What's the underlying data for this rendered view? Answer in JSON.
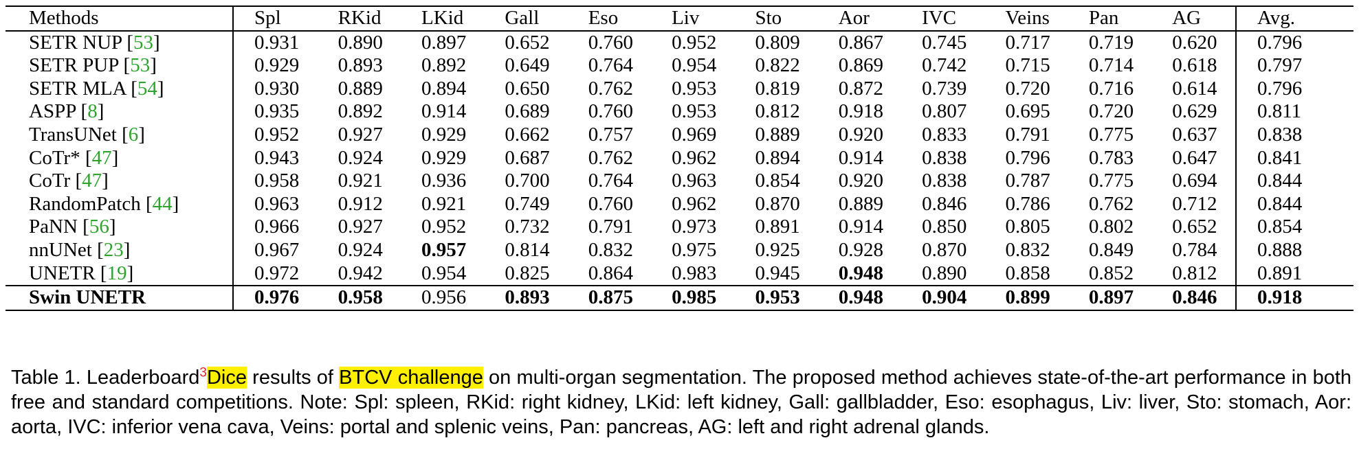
{
  "table": {
    "columns": [
      "Methods",
      "Spl",
      "RKid",
      "LKid",
      "Gall",
      "Eso",
      "Liv",
      "Sto",
      "Aor",
      "IVC",
      "Veins",
      "Pan",
      "AG",
      "Avg."
    ],
    "rows": [
      {
        "method": "SETR NUP ",
        "ref": "53",
        "values": [
          "0.931",
          "0.890",
          "0.897",
          "0.652",
          "0.760",
          "0.952",
          "0.809",
          "0.867",
          "0.745",
          "0.717",
          "0.719",
          "0.620",
          "0.796"
        ],
        "bold": []
      },
      {
        "method": "SETR PUP ",
        "ref": "53",
        "values": [
          "0.929",
          "0.893",
          "0.892",
          "0.649",
          "0.764",
          "0.954",
          "0.822",
          "0.869",
          "0.742",
          "0.715",
          "0.714",
          "0.618",
          "0.797"
        ],
        "bold": []
      },
      {
        "method": "SETR MLA ",
        "ref": "54",
        "values": [
          "0.930",
          "0.889",
          "0.894",
          "0.650",
          "0.762",
          "0.953",
          "0.819",
          "0.872",
          "0.739",
          "0.720",
          "0.716",
          "0.614",
          "0.796"
        ],
        "bold": []
      },
      {
        "method": "ASPP ",
        "ref": "8",
        "values": [
          "0.935",
          "0.892",
          "0.914",
          "0.689",
          "0.760",
          "0.953",
          "0.812",
          "0.918",
          "0.807",
          "0.695",
          "0.720",
          "0.629",
          "0.811"
        ],
        "bold": []
      },
      {
        "method": "TransUNet ",
        "ref": "6",
        "values": [
          "0.952",
          "0.927",
          "0.929",
          "0.662",
          "0.757",
          "0.969",
          "0.889",
          "0.920",
          "0.833",
          "0.791",
          "0.775",
          "0.637",
          "0.838"
        ],
        "bold": []
      },
      {
        "method": "CoTr* ",
        "ref": "47",
        "values": [
          "0.943",
          "0.924",
          "0.929",
          "0.687",
          "0.762",
          "0.962",
          "0.894",
          "0.914",
          "0.838",
          "0.796",
          "0.783",
          "0.647",
          "0.841"
        ],
        "bold": []
      },
      {
        "method": "CoTr ",
        "ref": "47",
        "values": [
          "0.958",
          "0.921",
          "0.936",
          "0.700",
          "0.764",
          "0.963",
          "0.854",
          "0.920",
          "0.838",
          "0.787",
          "0.775",
          "0.694",
          "0.844"
        ],
        "bold": []
      },
      {
        "method": "RandomPatch ",
        "ref": "44",
        "values": [
          "0.963",
          "0.912",
          "0.921",
          "0.749",
          "0.760",
          "0.962",
          "0.870",
          "0.889",
          "0.846",
          "0.786",
          "0.762",
          "0.712",
          "0.844"
        ],
        "bold": []
      },
      {
        "method": "PaNN ",
        "ref": "56",
        "values": [
          "0.966",
          "0.927",
          "0.952",
          "0.732",
          "0.791",
          "0.973",
          "0.891",
          "0.914",
          "0.850",
          "0.805",
          "0.802",
          "0.652",
          "0.854"
        ],
        "bold": []
      },
      {
        "method": "nnUNet ",
        "ref": "23",
        "values": [
          "0.967",
          "0.924",
          "0.957",
          "0.814",
          "0.832",
          "0.975",
          "0.925",
          "0.928",
          "0.870",
          "0.832",
          "0.849",
          "0.784",
          "0.888"
        ],
        "bold": [
          2
        ]
      },
      {
        "method": "UNETR ",
        "ref": "19",
        "values": [
          "0.972",
          "0.942",
          "0.954",
          "0.825",
          "0.864",
          "0.983",
          "0.945",
          "0.948",
          "0.890",
          "0.858",
          "0.852",
          "0.812",
          "0.891"
        ],
        "bold": [
          7
        ]
      },
      {
        "method": "Swin UNETR",
        "ref": "",
        "values": [
          "0.976",
          "0.958",
          "0.956",
          "0.893",
          "0.875",
          "0.985",
          "0.953",
          "0.948",
          "0.904",
          "0.899",
          "0.897",
          "0.846",
          "0.918"
        ],
        "bold": [
          0,
          1,
          3,
          4,
          5,
          6,
          7,
          8,
          9,
          10,
          11,
          12
        ],
        "method_bold": true
      }
    ]
  },
  "caption": {
    "part1": "Table 1.  Leaderboard",
    "footnote": "3",
    "hl1": "Dice",
    "part2": " results of ",
    "hl2": "BTCV challenge",
    "part3": " on multi-organ segmentation.  The proposed method achieves state-of-the-art performance in both free and standard competitions. Note: Spl: spleen, RKid: right kidney, LKid: left kidney, Gall: gallbladder, Eso: esophagus, Liv: liver, Sto: stomach, Aor: aorta, IVC: inferior vena cava, Veins: portal and splenic veins, Pan: pancreas, AG: left and right adrenal glands.",
    "highlight_color": "#ffef00",
    "reference_color": "#2ea32e",
    "footnote_color": "#d62a2a"
  }
}
